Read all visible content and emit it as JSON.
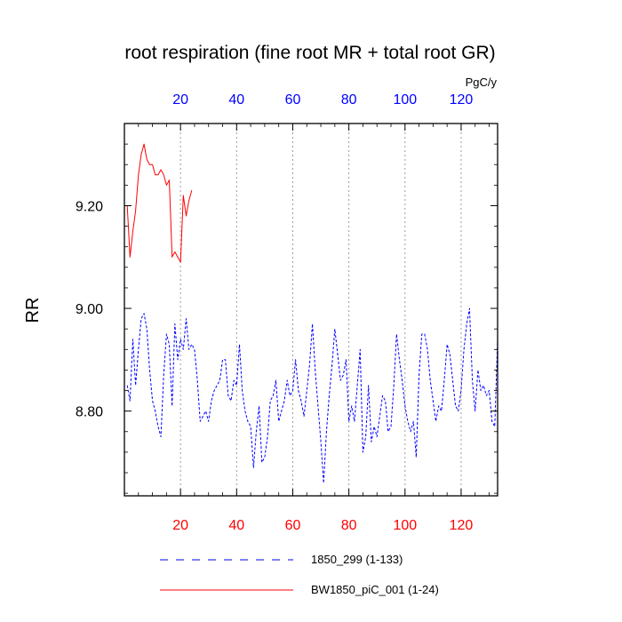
{
  "chart_data": {
    "type": "line",
    "title": "root respiration (fine root MR + total root GR)",
    "ylabel": "RR",
    "units": "PgC/y",
    "xlim": [
      0,
      133
    ],
    "ylim": [
      8.635,
      9.36
    ],
    "x_ticks": [
      20,
      40,
      60,
      80,
      100,
      120
    ],
    "x_tick_labels": [
      "20",
      "40",
      "60",
      "80",
      "100",
      "120"
    ],
    "y_ticks": [
      8.8,
      9.0,
      9.2
    ],
    "y_tick_labels": [
      "8.80",
      "9.00",
      "9.20"
    ],
    "y_minor_step": 0.04,
    "grid": "vertical dotted at x ticks",
    "colors": {
      "bottom_axis_labels": "#ff0000",
      "top_axis_labels": "#0000ff",
      "series_dashed": "#0000ff",
      "series_solid": "#ff0000",
      "grid": "#9a9a9a",
      "axes": "#000000"
    },
    "series": [
      {
        "name": "1850_299 (1-133)",
        "style": "dashed",
        "color": "#0000ff",
        "x_start": 1,
        "values": [
          8.85,
          8.82,
          8.94,
          8.85,
          8.92,
          8.98,
          8.99,
          8.96,
          8.88,
          8.82,
          8.8,
          8.77,
          8.75,
          8.87,
          8.95,
          8.93,
          8.81,
          8.97,
          8.9,
          8.94,
          8.92,
          8.98,
          8.92,
          8.93,
          8.92,
          8.86,
          8.78,
          8.79,
          8.8,
          8.78,
          8.82,
          8.84,
          8.85,
          8.86,
          8.9,
          8.9,
          8.83,
          8.82,
          8.86,
          8.85,
          8.93,
          8.84,
          8.8,
          8.78,
          8.77,
          8.69,
          8.76,
          8.81,
          8.7,
          8.71,
          8.75,
          8.82,
          8.83,
          8.86,
          8.78,
          8.8,
          8.82,
          8.86,
          8.83,
          8.84,
          8.9,
          8.84,
          8.82,
          8.79,
          8.84,
          8.89,
          8.97,
          8.88,
          8.81,
          8.74,
          8.66,
          8.76,
          8.83,
          8.89,
          8.96,
          8.91,
          8.86,
          8.87,
          8.9,
          8.78,
          8.81,
          8.78,
          8.85,
          8.92,
          8.72,
          8.75,
          8.85,
          8.74,
          8.77,
          8.75,
          8.79,
          8.83,
          8.82,
          8.76,
          8.77,
          8.85,
          8.95,
          8.9,
          8.86,
          8.81,
          8.78,
          8.76,
          8.78,
          8.71,
          8.87,
          8.95,
          8.95,
          8.92,
          8.86,
          8.82,
          8.78,
          8.81,
          8.8,
          8.86,
          8.93,
          8.91,
          8.86,
          8.81,
          8.8,
          8.84,
          8.92,
          8.97,
          9.0,
          8.86,
          8.8,
          8.88,
          8.84,
          8.85,
          8.83,
          8.84,
          8.78,
          8.77,
          8.94
        ]
      },
      {
        "name": "BW1850_piC_001 (1-24)",
        "style": "solid",
        "color": "#ff0000",
        "x_start": 1,
        "values": [
          9.2,
          9.1,
          9.15,
          9.19,
          9.26,
          9.3,
          9.32,
          9.29,
          9.28,
          9.28,
          9.26,
          9.26,
          9.27,
          9.26,
          9.24,
          9.25,
          9.1,
          9.11,
          9.1,
          9.09,
          9.22,
          9.18,
          9.21,
          9.23
        ]
      }
    ]
  }
}
